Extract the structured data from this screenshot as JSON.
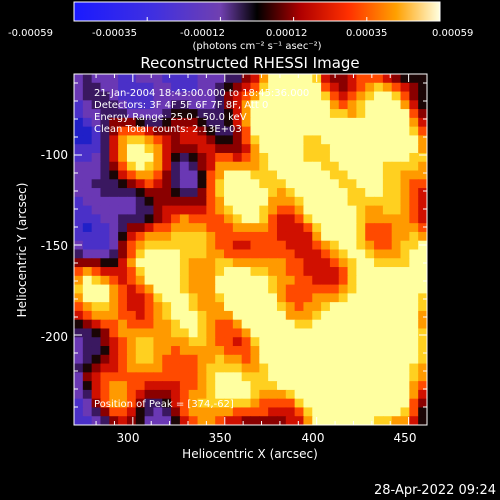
{
  "colorbar": {
    "ticks": [
      "-0.00059",
      "-0.00035",
      "-0.00012",
      "0.00012",
      "0.00035",
      "0.00059"
    ],
    "unit_label": "(photons cm⁻² s⁻¹ asec⁻²)",
    "range": [
      -0.00059,
      0.00059
    ]
  },
  "chart_data": {
    "type": "heatmap",
    "title": "Reconstructed RHESSI Image",
    "xlabel": "Heliocentric X (arcsec)",
    "ylabel": "Heliocentric Y (arcsec)",
    "xlim": [
      268,
      460
    ],
    "ylim": [
      -250,
      -55
    ],
    "xticks": [
      300,
      350,
      400,
      450
    ],
    "yticks": [
      -100,
      -150,
      -200
    ],
    "annotations": [
      "21-Jan-2004 18:43:00.000 to 18:45:36.000",
      "Detectors: 3F 4F 5F 6F 7F 8F, Att 0",
      "Energy Range: 25.0 - 50.0 keV",
      "Clean    Total counts: 2.13E+03"
    ],
    "peak_label": "Position of Peak = [374,-62]",
    "peak": [
      374,
      -62
    ]
  },
  "footer": {
    "timestamp": "28-Apr-2022 09:24"
  }
}
